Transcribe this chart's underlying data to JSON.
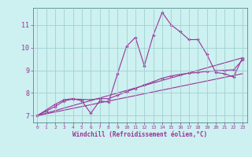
{
  "bg_color": "#cdf0f0",
  "line_color": "#993399",
  "grid_color": "#99cccc",
  "xlabel": "Windchill (Refroidissement éolien,°C)",
  "ylabel_ticks": [
    7,
    8,
    9,
    10,
    11
  ],
  "xlim": [
    -0.5,
    23.5
  ],
  "ylim": [
    6.7,
    11.75
  ],
  "xticks": [
    0,
    1,
    2,
    3,
    4,
    5,
    6,
    7,
    8,
    9,
    10,
    11,
    12,
    13,
    14,
    15,
    16,
    17,
    18,
    19,
    20,
    21,
    22,
    23
  ],
  "line1_x": [
    0,
    1,
    2,
    3,
    4,
    5,
    6,
    7,
    8,
    9,
    10,
    11,
    12,
    13,
    14,
    15,
    16,
    17,
    18,
    19,
    20,
    21,
    22,
    23
  ],
  "line1_y": [
    7.0,
    7.25,
    7.5,
    7.7,
    7.75,
    7.65,
    7.1,
    7.65,
    7.6,
    8.85,
    10.05,
    10.45,
    9.2,
    10.55,
    11.55,
    11.0,
    10.7,
    10.35,
    10.35,
    9.7,
    8.9,
    8.85,
    8.7,
    9.55
  ],
  "line2_x": [
    0,
    1,
    2,
    3,
    4,
    5,
    6,
    7,
    8,
    9,
    10,
    11,
    12,
    13,
    14,
    15,
    16,
    17,
    18,
    19,
    20,
    21,
    22,
    23
  ],
  "line2_y": [
    7.0,
    7.2,
    7.4,
    7.65,
    7.73,
    7.72,
    7.7,
    7.75,
    7.75,
    7.9,
    8.05,
    8.2,
    8.35,
    8.5,
    8.65,
    8.75,
    8.82,
    8.87,
    8.9,
    8.95,
    8.97,
    9.0,
    9.02,
    9.45
  ],
  "line3_x": [
    0,
    23
  ],
  "line3_y": [
    7.0,
    9.55
  ],
  "line4_x": [
    0,
    23
  ],
  "line4_y": [
    7.0,
    8.85
  ],
  "marker_style": "D",
  "marker_size": 1.8,
  "linewidth": 0.8,
  "tick_fontsize": 4.5,
  "xlabel_fontsize": 5.5,
  "ylabel_fontsize": 6.0
}
